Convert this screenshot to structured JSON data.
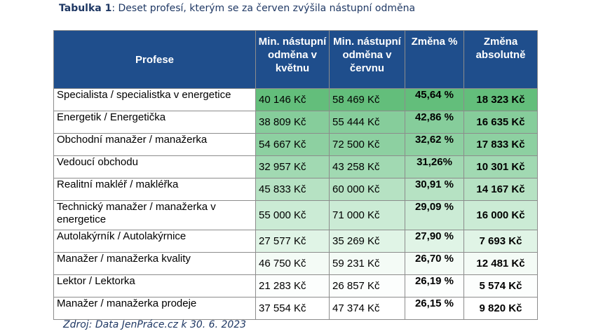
{
  "caption": {
    "label": "Tabulka 1",
    "text": ": Deset profesí, kterým se za červen zvýšila nástupní odměna"
  },
  "table": {
    "headers": {
      "profession": "Profese",
      "may": "Min. nástupní odměna v květnu",
      "june": "Min. nástupní odměna v červnu",
      "change_pct": "Změna %",
      "change_abs": "Změna absolutně"
    },
    "rows": [
      {
        "profession": "Specialista / specialistka v energetice",
        "may": "40 146 Kč",
        "june": "58 469 Kč",
        "change_pct": "45,64 %",
        "change_abs": "18 323 Kč"
      },
      {
        "profession": "Energetik / Energetička",
        "may": "38 809 Kč",
        "june": "55 444 Kč",
        "change_pct": "42,86 %",
        "change_abs": "16 635 Kč"
      },
      {
        "profession": "Obchodní manažer / manažerka",
        "may": "54 667 Kč",
        "june": "72 500 Kč",
        "change_pct": "32,62 %",
        "change_abs": "17 833 Kč"
      },
      {
        "profession": "Vedoucí obchodu",
        "may": "32 957 Kč",
        "june": "43 258 Kč",
        "change_pct": "31,26%",
        "change_abs": "10 301 Kč"
      },
      {
        "profession": "Realitní makléř / makléřka",
        "may": "45 833 Kč",
        "june": "60 000 Kč",
        "change_pct": "30,91 %",
        "change_abs": "14 167 Kč"
      },
      {
        "profession": "Technický manažer / manažerka v energetice",
        "may": "55 000 Kč",
        "june": "71 000 Kč",
        "change_pct": "29,09 %",
        "change_abs": "16 000 Kč"
      },
      {
        "profession": "Autolakýrník / Autolakýrnice",
        "may": "27 577 Kč",
        "june": "35 269 Kč",
        "change_pct": "27,90 %",
        "change_abs": "7 693 Kč"
      },
      {
        "profession": "Manažer / manažerka kvality",
        "may": "46 750 Kč",
        "june": "59 231 Kč",
        "change_pct": "26,70 %",
        "change_abs": "12 481 Kč"
      },
      {
        "profession": "Lektor / Lektorka",
        "may": "21 283 Kč",
        "june": "26 857 Kč",
        "change_pct": "26,19 %",
        "change_abs": "5 574 Kč"
      },
      {
        "profession": "Manažer / manažerka prodeje",
        "may": "37 554 Kč",
        "june": "47 374 Kč",
        "change_pct": "26,15 %",
        "change_abs": "9 820 Kč"
      }
    ],
    "colors": {
      "header": "#1f4e8c",
      "row_shades": [
        "#63be7b",
        "#86cd9b",
        "#8dd0a1",
        "#a1d9b2",
        "#b6e2c3",
        "#cbebd5",
        "#e0f4e6",
        "#f4fbf6",
        "#fcfefd",
        "#ffffff"
      ]
    }
  },
  "source": "Zdroj: Data JenPráce.cz k 30. 6. 2023"
}
